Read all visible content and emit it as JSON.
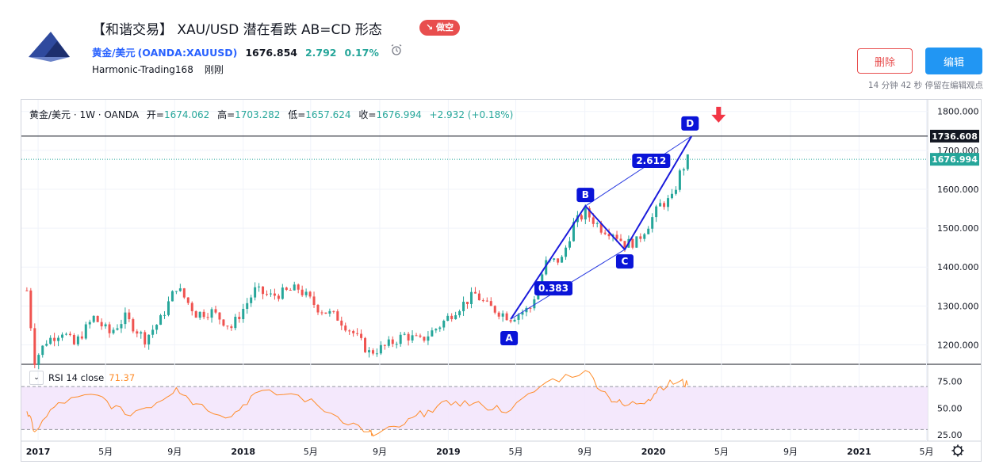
{
  "header": {
    "title": "【和谐交易】 XAU/USD 潜在看跌 AB=CD 形态",
    "badge": "↘ 做空",
    "symbol_name": "黄金/美元",
    "symbol_ticker": "(OANDA:XAUUSD)",
    "price": "1676.854",
    "change": "2.792",
    "change_pct": "0.17%",
    "author": "Harmonic-Trading168",
    "time": "刚刚",
    "delete_label": "删除",
    "edit_label": "编辑",
    "edit_note": "14 分钟 42 秒 停留在编辑观点",
    "colors": {
      "up": "#26a69a",
      "down": "#ef5350",
      "accent": "#2962ff",
      "badge": "#e84e4e",
      "edit": "#2196f3"
    }
  },
  "chart": {
    "legend_symbol": "黄金/美元 · 1W · OANDA",
    "open_label": "开=",
    "open": "1674.062",
    "high_label": "高=",
    "high": "1703.282",
    "low_label": "低=",
    "low": "1657.624",
    "close_label": "收=",
    "close": "1676.994",
    "change": "+2.932 (+0.18%)",
    "price_ticks": [
      "1800.000",
      "1700.000",
      "1600.000",
      "1500.000",
      "1400.000",
      "1300.000",
      "1200.000"
    ],
    "price_tag_d": "1736.608",
    "price_tag_last": "1676.994",
    "rsi_label": "RSI 14 close",
    "rsi_value": "71.37",
    "rsi_ticks": [
      "75.00",
      "50.00",
      "25.00"
    ],
    "time_ticks": [
      "2017",
      "5月",
      "9月",
      "2018",
      "5月",
      "9月",
      "2019",
      "5月",
      "9月",
      "2020",
      "5月",
      "9月",
      "2021",
      "5月"
    ],
    "pattern_labels": {
      "A": "A",
      "B": "B",
      "C": "C",
      "D": "D"
    },
    "ratio_labels": {
      "bc": "0.383",
      "cd": "2.612"
    },
    "settings_icon": "gear-icon"
  },
  "chart_data": {
    "type": "candlestick",
    "title": "黄金/美元 · 1W · OANDA",
    "ylim": [
      1150,
      1830
    ],
    "rsi_ylim": [
      20,
      90
    ],
    "pattern": [
      {
        "name": "A",
        "date": "2019-04-22",
        "price": 1266
      },
      {
        "name": "B",
        "date": "2019-09-02",
        "price": 1557
      },
      {
        "name": "C",
        "date": "2019-11-11",
        "price": 1445
      },
      {
        "name": "D",
        "date": "2020-03-09",
        "price": 1736.608
      }
    ],
    "ratios": {
      "bc_retracement": 0.383,
      "cd_extension": 2.612
    },
    "horizontal_line": 1736.608,
    "last_close": 1676.994,
    "close_path": [
      [
        "2016-12-12",
        1340
      ],
      [
        "2016-12-26",
        1160
      ],
      [
        "2017-01-16",
        1210
      ],
      [
        "2017-02-13",
        1235
      ],
      [
        "2017-03-06",
        1200
      ],
      [
        "2017-04-10",
        1270
      ],
      [
        "2017-05-08",
        1230
      ],
      [
        "2017-06-05",
        1270
      ],
      [
        "2017-07-10",
        1215
      ],
      [
        "2017-08-07",
        1265
      ],
      [
        "2017-09-04",
        1350
      ],
      [
        "2017-10-09",
        1280
      ],
      [
        "2017-11-06",
        1285
      ],
      [
        "2017-12-11",
        1245
      ],
      [
        "2018-01-22",
        1340
      ],
      [
        "2018-02-19",
        1325
      ],
      [
        "2018-04-09",
        1345
      ],
      [
        "2018-05-14",
        1295
      ],
      [
        "2018-06-18",
        1270
      ],
      [
        "2018-07-16",
        1230
      ],
      [
        "2018-08-13",
        1180
      ],
      [
        "2018-09-10",
        1195
      ],
      [
        "2018-10-15",
        1225
      ],
      [
        "2018-11-12",
        1210
      ],
      [
        "2018-12-17",
        1250
      ],
      [
        "2019-01-14",
        1290
      ],
      [
        "2019-02-18",
        1330
      ],
      [
        "2019-03-11",
        1300
      ],
      [
        "2019-04-22",
        1270
      ],
      [
        "2019-05-27",
        1295
      ],
      [
        "2019-06-24",
        1410
      ],
      [
        "2019-07-22",
        1420
      ],
      [
        "2019-08-12",
        1510
      ],
      [
        "2019-09-02",
        1540
      ],
      [
        "2019-09-30",
        1500
      ],
      [
        "2019-10-21",
        1490
      ],
      [
        "2019-11-11",
        1460
      ],
      [
        "2019-12-02",
        1465
      ],
      [
        "2019-12-23",
        1510
      ],
      [
        "2020-01-13",
        1560
      ],
      [
        "2020-02-03",
        1575
      ],
      [
        "2020-02-17",
        1640
      ],
      [
        "2020-03-02",
        1677
      ]
    ],
    "rsi_path": [
      [
        "2016-12-12",
        47
      ],
      [
        "2016-12-26",
        28
      ],
      [
        "2017-02-06",
        55
      ],
      [
        "2017-04-17",
        62
      ],
      [
        "2017-06-05",
        44
      ],
      [
        "2017-07-31",
        55
      ],
      [
        "2017-09-04",
        69
      ],
      [
        "2017-10-09",
        54
      ],
      [
        "2017-12-11",
        42
      ],
      [
        "2018-01-22",
        64
      ],
      [
        "2018-04-09",
        62
      ],
      [
        "2018-06-18",
        42
      ],
      [
        "2018-08-13",
        28
      ],
      [
        "2018-08-20",
        24
      ],
      [
        "2018-10-15",
        35
      ],
      [
        "2018-11-26",
        48
      ],
      [
        "2019-01-14",
        56
      ],
      [
        "2019-03-04",
        52
      ],
      [
        "2019-04-22",
        48
      ],
      [
        "2019-06-24",
        74
      ],
      [
        "2019-09-02",
        85
      ],
      [
        "2019-10-14",
        60
      ],
      [
        "2019-11-11",
        52
      ],
      [
        "2019-12-23",
        58
      ],
      [
        "2020-01-13",
        70
      ],
      [
        "2020-02-17",
        75
      ],
      [
        "2020-03-02",
        71.37
      ]
    ]
  }
}
